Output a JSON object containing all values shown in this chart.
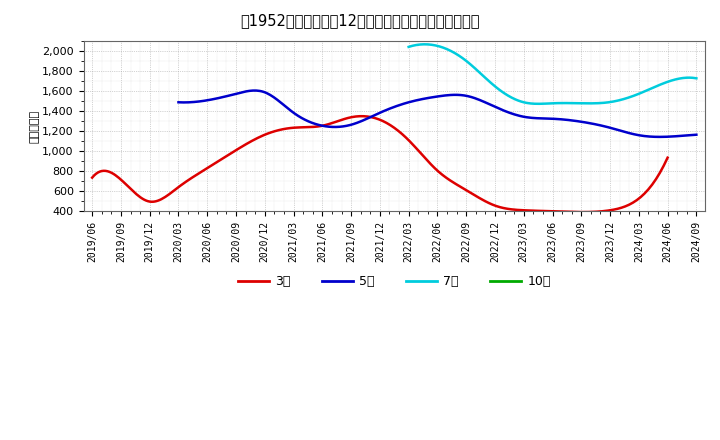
{
  "title": "［1952］　経常利益12か月移動合計の標準偏差の推移",
  "ylabel": "（百万円）",
  "background_color": "#ffffff",
  "plot_bg_color": "#ffffff",
  "grid_color": "#999999",
  "ylim": [
    400,
    2100
  ],
  "yticks": [
    400,
    600,
    800,
    1000,
    1200,
    1400,
    1600,
    1800,
    2000
  ],
  "series": {
    "3year": {
      "label": "3年",
      "color": "#dd0000",
      "values": [
        735,
        715,
        495,
        640,
        830,
        1010,
        1165,
        1235,
        1255,
        1340,
        1315,
        1110,
        805,
        610,
        455,
        408,
        398,
        390,
        408,
        525,
        935,
        null
      ]
    },
    "5year": {
      "label": "5年",
      "color": "#0000cc",
      "values": [
        null,
        null,
        null,
        1490,
        1510,
        1575,
        1590,
        1385,
        1255,
        1265,
        1385,
        1490,
        1548,
        1555,
        1445,
        1345,
        1325,
        1295,
        1235,
        1160,
        1145,
        1165
      ]
    },
    "7year": {
      "label": "7年",
      "color": "#00ccdd",
      "values": [
        null,
        null,
        null,
        null,
        null,
        null,
        null,
        null,
        null,
        null,
        null,
        2045,
        2055,
        1905,
        1650,
        1490,
        1480,
        1480,
        1492,
        1575,
        1695,
        1730
      ]
    },
    "10year": {
      "label": "10年",
      "color": "#00aa00",
      "values": [
        null,
        null,
        null,
        null,
        null,
        null,
        null,
        null,
        null,
        null,
        null,
        null,
        null,
        null,
        null,
        null,
        null,
        null,
        null,
        null,
        null,
        null
      ]
    }
  },
  "xtick_labels": [
    "2019/06",
    "2019/09",
    "2019/12",
    "2020/03",
    "2020/06",
    "2020/09",
    "2020/12",
    "2021/03",
    "2021/06",
    "2021/09",
    "2021/12",
    "2022/03",
    "2022/06",
    "2022/09",
    "2022/12",
    "2023/03",
    "2023/06",
    "2023/09",
    "2023/12",
    "2024/03",
    "2024/06",
    "2024/09"
  ],
  "legend_labels": [
    "3年",
    "5年",
    "7年",
    "10年"
  ],
  "legend_colors": [
    "#dd0000",
    "#0000cc",
    "#00ccdd",
    "#00aa00"
  ]
}
